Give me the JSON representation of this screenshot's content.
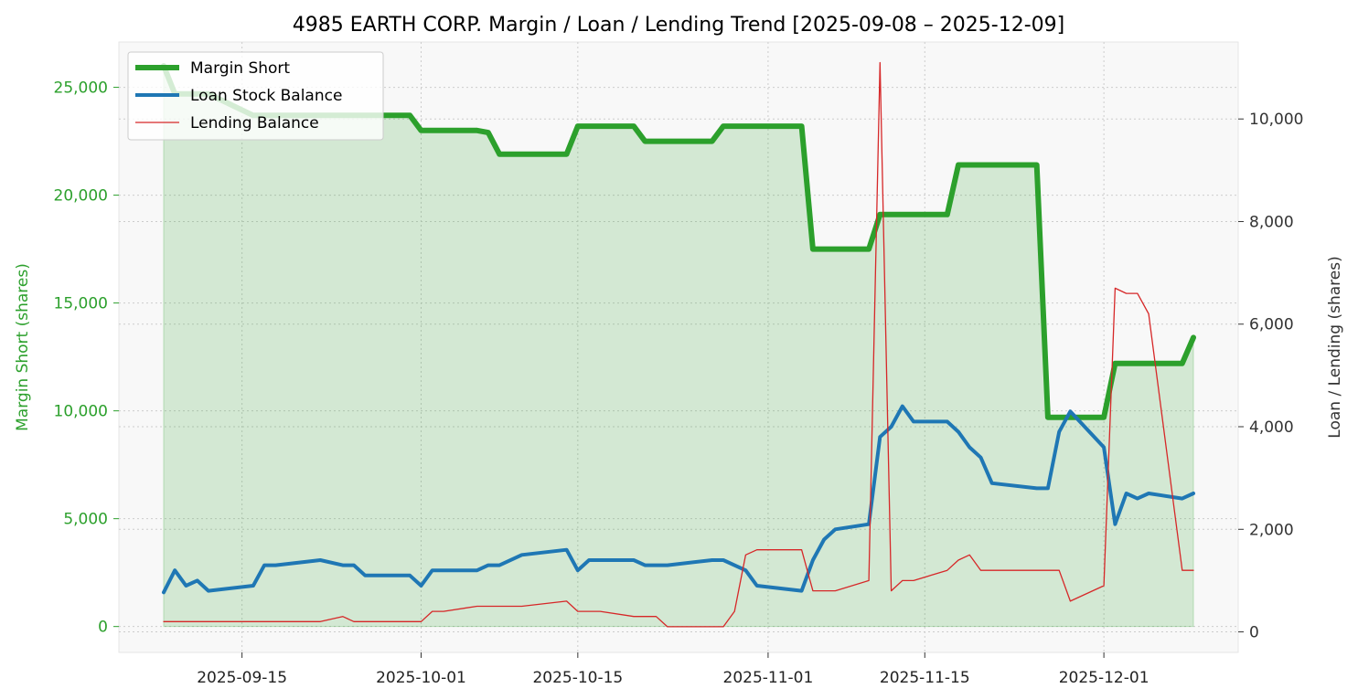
{
  "chart_data": {
    "type": "line",
    "title": "4985 EARTH CORP. Margin / Loan / Lending Trend [2025-09-08 – 2025-12-09]",
    "ylabel_left": "Margin Short (shares)",
    "ylabel_right": "Loan / Lending (shares)",
    "xlim": [
      "2025-09-04",
      "2025-12-13"
    ],
    "ylim_left": [
      -1200,
      27100
    ],
    "ylim_right": [
      -400,
      11500
    ],
    "x_ticks": [
      "2025-09-15",
      "2025-10-01",
      "2025-10-15",
      "2025-11-01",
      "2025-11-15",
      "2025-12-01"
    ],
    "y_left_ticks": [
      0,
      5000,
      10000,
      15000,
      20000,
      25000
    ],
    "y_left_tick_labels": [
      "0",
      "5,000",
      "10,000",
      "15,000",
      "20,000",
      "25,000"
    ],
    "y_right_ticks": [
      0,
      2000,
      4000,
      6000,
      8000,
      10000
    ],
    "y_right_tick_labels": [
      "0",
      "2,000",
      "4,000",
      "6,000",
      "8,000",
      "10,000"
    ],
    "grid": true,
    "legend_position": "top-left",
    "colors": {
      "margin": "#2ca02c",
      "loan": "#1f77b4",
      "lending": "#d62728",
      "fill": "#2ca02c",
      "left_axis_text": "#2ca02c",
      "right_axis_text": "#333333",
      "plot_bg": "#f8f8f8",
      "grid": "#cccccc"
    },
    "series": [
      {
        "name": "Margin Short",
        "axis": "left",
        "x": [
          "2025-09-08",
          "2025-09-09",
          "2025-09-10",
          "2025-09-11",
          "2025-09-12",
          "2025-09-16",
          "2025-09-17",
          "2025-09-18",
          "2025-09-19",
          "2025-09-22",
          "2025-09-24",
          "2025-09-25",
          "2025-09-26",
          "2025-09-29",
          "2025-09-30",
          "2025-10-01",
          "2025-10-02",
          "2025-10-03",
          "2025-10-06",
          "2025-10-07",
          "2025-10-08",
          "2025-10-09",
          "2025-10-10",
          "2025-10-14",
          "2025-10-15",
          "2025-10-16",
          "2025-10-17",
          "2025-10-20",
          "2025-10-21",
          "2025-10-22",
          "2025-10-23",
          "2025-10-24",
          "2025-10-27",
          "2025-10-28",
          "2025-10-29",
          "2025-10-30",
          "2025-10-31",
          "2025-11-04",
          "2025-11-05",
          "2025-11-06",
          "2025-11-07",
          "2025-11-10",
          "2025-11-11",
          "2025-11-12",
          "2025-11-13",
          "2025-11-14",
          "2025-11-17",
          "2025-11-18",
          "2025-11-19",
          "2025-11-20",
          "2025-11-21",
          "2025-11-25",
          "2025-11-26",
          "2025-11-27",
          "2025-11-28",
          "2025-12-01",
          "2025-12-02",
          "2025-12-03",
          "2025-12-04",
          "2025-12-05",
          "2025-12-08",
          "2025-12-09"
        ],
        "values": [
          26000,
          24700,
          24700,
          24700,
          24700,
          23700,
          23700,
          23700,
          23700,
          23700,
          23700,
          23700,
          23700,
          23700,
          23700,
          23000,
          23000,
          23000,
          23000,
          22900,
          21900,
          21900,
          21900,
          21900,
          23200,
          23200,
          23200,
          23200,
          22500,
          22500,
          22500,
          22500,
          22500,
          23200,
          23200,
          23200,
          23200,
          23200,
          17500,
          17500,
          17500,
          17500,
          19100,
          19100,
          19100,
          19100,
          19100,
          21400,
          21400,
          21400,
          21400,
          21400,
          9700,
          9700,
          9700,
          9700,
          12200,
          12200,
          12200,
          12200,
          12200,
          13400
        ]
      },
      {
        "name": "Loan Stock Balance",
        "axis": "right",
        "x": [
          "2025-09-08",
          "2025-09-09",
          "2025-09-10",
          "2025-09-11",
          "2025-09-12",
          "2025-09-16",
          "2025-09-17",
          "2025-09-18",
          "2025-09-22",
          "2025-09-24",
          "2025-09-25",
          "2025-09-26",
          "2025-09-29",
          "2025-09-30",
          "2025-10-01",
          "2025-10-02",
          "2025-10-03",
          "2025-10-06",
          "2025-10-07",
          "2025-10-08",
          "2025-10-10",
          "2025-10-14",
          "2025-10-15",
          "2025-10-16",
          "2025-10-17",
          "2025-10-20",
          "2025-10-21",
          "2025-10-23",
          "2025-10-27",
          "2025-10-28",
          "2025-10-30",
          "2025-10-31",
          "2025-11-04",
          "2025-11-05",
          "2025-11-06",
          "2025-11-07",
          "2025-11-10",
          "2025-11-11",
          "2025-11-12",
          "2025-11-13",
          "2025-11-14",
          "2025-11-17",
          "2025-11-18",
          "2025-11-19",
          "2025-11-20",
          "2025-11-21",
          "2025-11-25",
          "2025-11-26",
          "2025-11-27",
          "2025-11-28",
          "2025-12-01",
          "2025-12-02",
          "2025-12-03",
          "2025-12-04",
          "2025-12-05",
          "2025-12-08",
          "2025-12-09"
        ],
        "values": [
          770,
          1200,
          900,
          1000,
          800,
          900,
          1300,
          1300,
          1400,
          1300,
          1300,
          1100,
          1100,
          1100,
          900,
          1200,
          1200,
          1200,
          1300,
          1300,
          1500,
          1600,
          1200,
          1400,
          1400,
          1400,
          1300,
          1300,
          1400,
          1400,
          1200,
          900,
          800,
          1400,
          1800,
          2000,
          2100,
          3800,
          4000,
          4400,
          4100,
          4100,
          3900,
          3600,
          3400,
          2900,
          2800,
          2800,
          3900,
          4300,
          3600,
          2100,
          2700,
          2600,
          2700,
          2600,
          2700
        ]
      },
      {
        "name": "Lending Balance",
        "axis": "right",
        "x": [
          "2025-09-08",
          "2025-09-22",
          "2025-09-24",
          "2025-09-25",
          "2025-09-30",
          "2025-10-01",
          "2025-10-02",
          "2025-10-03",
          "2025-10-06",
          "2025-10-10",
          "2025-10-14",
          "2025-10-15",
          "2025-10-17",
          "2025-10-20",
          "2025-10-22",
          "2025-10-23",
          "2025-10-24",
          "2025-10-27",
          "2025-10-28",
          "2025-10-29",
          "2025-10-30",
          "2025-10-31",
          "2025-11-04",
          "2025-11-05",
          "2025-11-06",
          "2025-11-07",
          "2025-11-10",
          "2025-11-11",
          "2025-11-12",
          "2025-11-13",
          "2025-11-14",
          "2025-11-17",
          "2025-11-18",
          "2025-11-19",
          "2025-11-20",
          "2025-11-21",
          "2025-11-25",
          "2025-11-26",
          "2025-11-27",
          "2025-11-28",
          "2025-12-01",
          "2025-12-02",
          "2025-12-03",
          "2025-12-04",
          "2025-12-05",
          "2025-12-08",
          "2025-12-09"
        ],
        "values": [
          200,
          200,
          300,
          200,
          200,
          200,
          400,
          400,
          500,
          500,
          600,
          400,
          400,
          300,
          300,
          100,
          100,
          100,
          100,
          400,
          1500,
          1600,
          1600,
          800,
          800,
          800,
          1000,
          11100,
          800,
          1000,
          1000,
          1200,
          1400,
          1500,
          1200,
          1200,
          1200,
          1200,
          1200,
          600,
          900,
          6700,
          6600,
          6600,
          6200,
          1200,
          1200
        ]
      }
    ]
  }
}
